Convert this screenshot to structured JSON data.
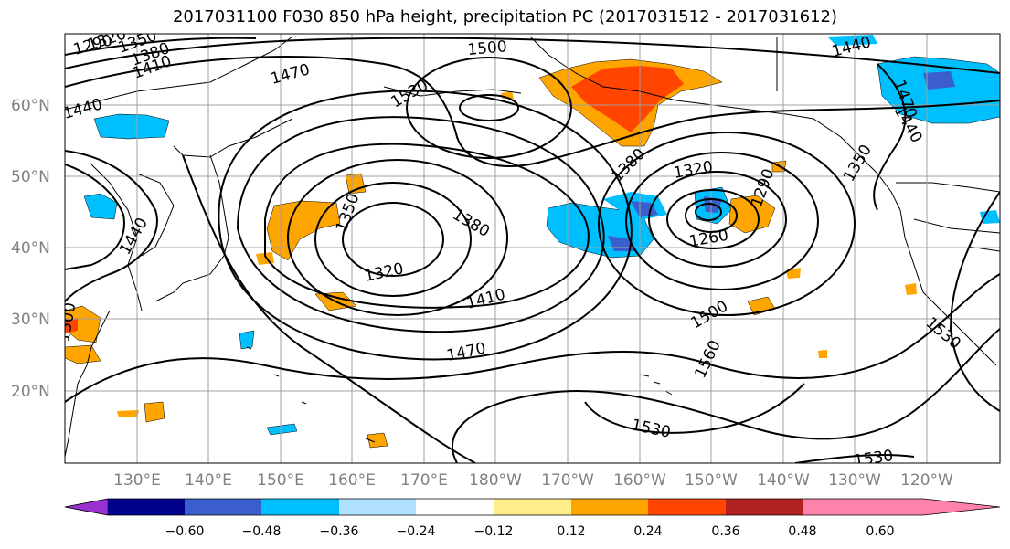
{
  "title": "2017031100 F030 850 hPa height, precipitation PC (2017031512 - 2017031612)",
  "map": {
    "lat_labels": [
      "60°N",
      "50°N",
      "40°N",
      "30°N",
      "20°N"
    ],
    "lon_labels": [
      "130°E",
      "140°E",
      "150°E",
      "160°E",
      "170°E",
      "180°W",
      "170°W",
      "160°W",
      "150°W",
      "140°W",
      "130°W",
      "120°W"
    ],
    "contour_labels": [
      "1290",
      "1320",
      "1350",
      "1380",
      "1410",
      "1440",
      "1470",
      "1500",
      "1530",
      "1560",
      "1260",
      "1290",
      "1320",
      "1350",
      "1380",
      "1410",
      "1440",
      "1470",
      "1500",
      "1530",
      "1320",
      "1350",
      "1380",
      "1410",
      "1470",
      "1500",
      "1530",
      "1560",
      "1530",
      "1530",
      "1440",
      "1470",
      "1440",
      "1350",
      "1440",
      "1500",
      "1530"
    ]
  },
  "colorbar": {
    "tick_labels": [
      "−0.60",
      "−0.48",
      "−0.36",
      "−0.24",
      "−0.12",
      "0.12",
      "0.24",
      "0.36",
      "0.48",
      "0.60"
    ],
    "colors": [
      "#9b30d0",
      "#00008b",
      "#3a5fcd",
      "#00bfff",
      "#b0e2ff",
      "#ffffff",
      "#ffec8b",
      "#ffa500",
      "#ff4500",
      "#b22222",
      "#ff82ab"
    ]
  }
}
